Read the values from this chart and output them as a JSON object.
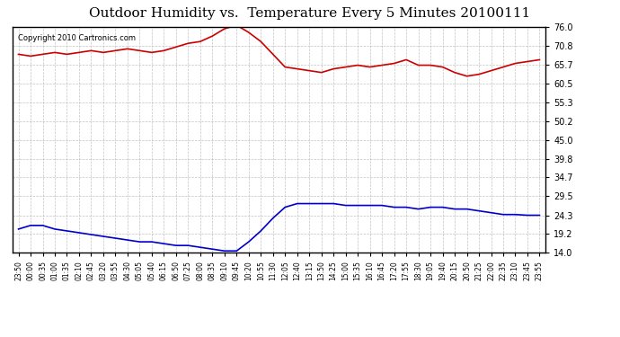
{
  "title": "Outdoor Humidity vs.  Temperature Every 5 Minutes 20100111",
  "copyright": "Copyright 2010 Cartronics.com",
  "bg_color": "#ffffff",
  "plot_bg_color": "#ffffff",
  "grid_color": "#aaaaaa",
  "line1_color": "#cc0000",
  "line2_color": "#0000cc",
  "yticks": [
    14.0,
    19.2,
    24.3,
    29.5,
    34.7,
    39.8,
    45.0,
    50.2,
    55.3,
    60.5,
    65.7,
    70.8,
    76.0
  ],
  "ylim": [
    14.0,
    76.0
  ],
  "x_labels": [
    "23:50",
    "00:00",
    "00:35",
    "01:00",
    "01:35",
    "02:10",
    "02:45",
    "03:20",
    "03:55",
    "04:30",
    "05:05",
    "05:40",
    "06:15",
    "06:50",
    "07:25",
    "08:00",
    "08:35",
    "09:10",
    "09:45",
    "10:20",
    "10:55",
    "11:30",
    "12:05",
    "12:40",
    "13:15",
    "13:50",
    "14:25",
    "15:00",
    "15:35",
    "16:10",
    "16:45",
    "17:20",
    "17:55",
    "18:30",
    "19:05",
    "19:40",
    "20:15",
    "20:50",
    "21:25",
    "22:00",
    "22:35",
    "23:10",
    "23:45",
    "23:55"
  ],
  "temp_data": [
    68.5,
    68.0,
    68.5,
    69.0,
    68.5,
    69.0,
    69.5,
    69.0,
    69.5,
    70.0,
    69.5,
    69.0,
    69.5,
    70.5,
    71.5,
    72.0,
    73.5,
    75.5,
    76.5,
    74.5,
    72.0,
    68.5,
    65.0,
    64.5,
    64.0,
    63.5,
    64.5,
    65.0,
    65.5,
    65.0,
    65.5,
    66.0,
    67.0,
    65.5,
    65.5,
    65.0,
    63.5,
    62.5,
    63.0,
    64.0,
    65.0,
    66.0,
    66.5,
    67.0
  ],
  "humid_data": [
    20.5,
    21.5,
    21.5,
    20.5,
    20.0,
    19.5,
    19.0,
    18.5,
    18.0,
    17.5,
    17.0,
    17.0,
    16.5,
    16.0,
    16.0,
    15.5,
    15.0,
    14.5,
    14.5,
    17.0,
    20.0,
    23.5,
    26.5,
    27.5,
    27.5,
    27.5,
    27.5,
    27.0,
    27.0,
    27.0,
    27.0,
    26.5,
    26.5,
    26.0,
    26.5,
    26.5,
    26.0,
    26.0,
    25.5,
    25.0,
    24.5,
    24.5,
    24.3,
    24.3
  ]
}
